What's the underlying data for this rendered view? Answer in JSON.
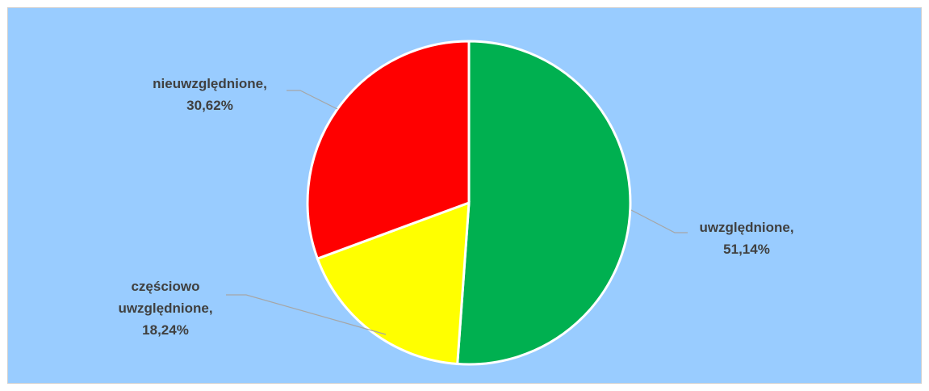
{
  "chart_data": {
    "type": "pie",
    "colors": {
      "background": "#99ccff",
      "slice_border": "#ffffff",
      "leader_line": "#a6a6a6",
      "label_text": "#404040"
    },
    "slices": [
      {
        "label": "uwzględnione",
        "value": 51.14,
        "color": "#00b050",
        "display": "uwzględnione,\n51,14%"
      },
      {
        "label": "częściowo uwzględnione",
        "value": 18.24,
        "color": "#ffff00",
        "display": "częściowo\nuwzględnione,\n18,24%"
      },
      {
        "label": "nieuwzględnione",
        "value": 30.62,
        "color": "#ff0000",
        "display": "nieuwzględnione,\n30,62%"
      }
    ]
  }
}
